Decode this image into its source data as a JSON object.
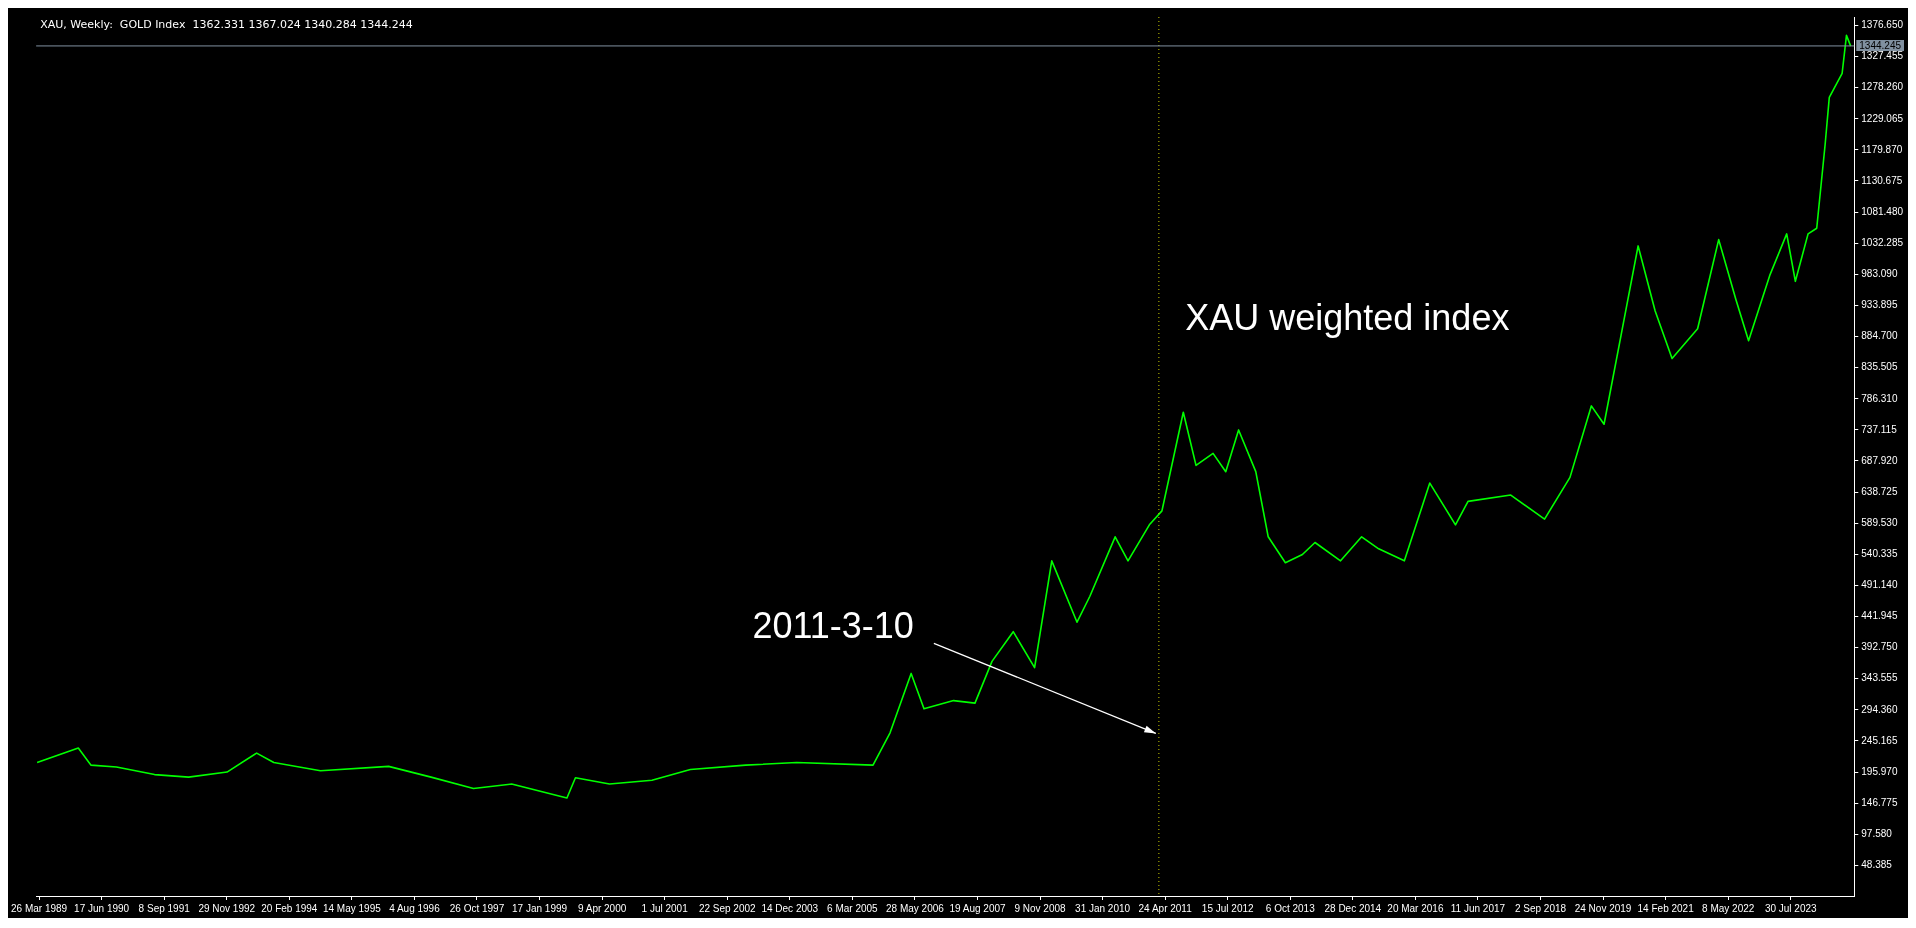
{
  "chart_data": {
    "type": "line",
    "title": "XAU, Weekly:  GOLD Index  1362.331 1367.024 1340.284 1344.244",
    "x": [
      "1989-03-12",
      "1990-01",
      "1990-04",
      "1990-10",
      "1991-07",
      "1992-03",
      "1992-12",
      "1993-07",
      "1993-11",
      "1994-10",
      "1996-02",
      "1996-12",
      "1997-10",
      "1998-07",
      "1999-08",
      "1999-10",
      "2000-06",
      "2001-04",
      "2002-01",
      "2003-02",
      "2004-02",
      "2005-08",
      "2005-12",
      "2006-05",
      "2006-08",
      "2007-03",
      "2007-08",
      "2007-12",
      "2008-05",
      "2008-10",
      "2009-02",
      "2009-08",
      "2009-11",
      "2010-05",
      "2010-08",
      "2011-01",
      "2011-04",
      "2011-09",
      "2011-12",
      "2012-04",
      "2012-07",
      "2012-10",
      "2013-02",
      "2013-05",
      "2013-09",
      "2014-01",
      "2014-04",
      "2014-10",
      "2015-03",
      "2015-07",
      "2016-01",
      "2016-07",
      "2017-01",
      "2017-04",
      "2018-02",
      "2018-10",
      "2019-04",
      "2019-09",
      "2019-12",
      "2020-04",
      "2020-08",
      "2020-12",
      "2021-04",
      "2021-10",
      "2022-03",
      "2022-07",
      "2022-10",
      "2023-03",
      "2023-07",
      "2023-09",
      "2023-12",
      "2024-02",
      "2024-04",
      "2024-05",
      "2024-08",
      "2024-09",
      "2024-10"
    ],
    "series": [
      {
        "color": "#00ff00",
        "values": [
          211,
          234,
          207,
          204,
          192,
          188,
          196,
          226,
          211,
          198,
          205,
          188,
          170,
          177,
          155,
          187,
          177,
          183,
          200,
          207,
          211,
          207,
          258,
          352,
          296,
          309,
          305,
          371,
          418,
          361,
          530,
          433,
          474,
          568,
          530,
          587,
          609,
          765,
          681,
          700,
          671,
          737,
          671,
          568,
          527,
          540,
          559,
          530,
          568,
          549,
          530,
          653,
          587,
          624,
          634,
          596,
          662,
          775,
          746,
          887,
          1028,
          925,
          850,
          897,
          1038,
          944,
          878,
          981,
          1047,
          972,
          1047,
          1056,
          1188,
          1263,
          1301,
          1361,
          1344
        ]
      }
    ],
    "xlim": [
      "1989-03-05",
      "2024-10-27"
    ],
    "xticks": [
      {
        "value": "1989-03-26",
        "label": "26 Mar 1989"
      },
      {
        "value": "1990-06-17",
        "label": "17 Jun 1990"
      },
      {
        "value": "1991-09-08",
        "label": "8 Sep 1991"
      },
      {
        "value": "1992-11-29",
        "label": "29 Nov 1992"
      },
      {
        "value": "1994-02-20",
        "label": "20 Feb 1994"
      },
      {
        "value": "1995-05-14",
        "label": "14 May 1995"
      },
      {
        "value": "1996-08-04",
        "label": "4 Aug 1996"
      },
      {
        "value": "1997-10-26",
        "label": "26 Oct 1997"
      },
      {
        "value": "1999-01-17",
        "label": "17 Jan 1999"
      },
      {
        "value": "2000-04-09",
        "label": "9 Apr 2000"
      },
      {
        "value": "2001-07-01",
        "label": "1 Jul 2001"
      },
      {
        "value": "2002-09-22",
        "label": "22 Sep 2002"
      },
      {
        "value": "2003-12-14",
        "label": "14 Dec 2003"
      },
      {
        "value": "2005-03-06",
        "label": "6 Mar 2005"
      },
      {
        "value": "2006-05-28",
        "label": "28 May 2006"
      },
      {
        "value": "2007-08-19",
        "label": "19 Aug 2007"
      },
      {
        "value": "2008-11-09",
        "label": "9 Nov 2008"
      },
      {
        "value": "2010-01-31",
        "label": "31 Jan 2010"
      },
      {
        "value": "2011-04-24",
        "label": "24 Apr 2011"
      },
      {
        "value": "2012-07-15",
        "label": "15 Jul 2012"
      },
      {
        "value": "2013-10-06",
        "label": "6 Oct 2013"
      },
      {
        "value": "2014-12-28",
        "label": "28 Dec 2014"
      },
      {
        "value": "2016-03-20",
        "label": "20 Mar 2016"
      },
      {
        "value": "2017-06-11",
        "label": "11 Jun 2017"
      },
      {
        "value": "2018-09-02",
        "label": "2 Sep 2018"
      },
      {
        "value": "2019-11-24",
        "label": "24 Nov 2019"
      },
      {
        "value": "2021-02-14",
        "label": "14 Feb 2021"
      },
      {
        "value": "2022-05-08",
        "label": "8 May 2022"
      },
      {
        "value": "2023-07-30",
        "label": "30 Jul 2023"
      }
    ],
    "ylim": [
      0,
      1390
    ],
    "yticks": [
      48.385,
      {
        "value": 97.58,
        "label": "97.580"
      },
      146.775,
      {
        "value": 195.97,
        "label": "195.970"
      },
      245.165,
      {
        "value": 294.36,
        "label": "294.360"
      },
      343.555,
      {
        "value": 392.75,
        "label": "392.750"
      },
      441.945,
      {
        "value": 491.14,
        "label": "491.140"
      },
      540.335,
      {
        "value": 589.53,
        "label": "589.530"
      },
      638.725,
      {
        "value": 687.92,
        "label": "687.920"
      },
      737.115,
      {
        "value": 786.31,
        "label": "786.310"
      },
      835.505,
      {
        "value": 884.7,
        "label": "884.700"
      },
      933.895,
      {
        "value": 983.09,
        "label": "983.090"
      },
      1032.285,
      {
        "value": 1081.48,
        "label": "1081.480"
      },
      1130.675,
      {
        "value": 1179.87,
        "label": "1179.870"
      },
      1229.065,
      {
        "value": 1278.26,
        "label": "1278.260"
      },
      1327.455,
      {
        "value": 1376.65,
        "label": "1376.650"
      }
    ],
    "ref_lines": [
      {
        "axis": "x",
        "value": "2011-03-10",
        "label": "2011-3-10",
        "color": "#c8c800",
        "line_style": "dotted"
      },
      {
        "axis": "y",
        "value": 1344.245,
        "label": "1344.245",
        "color": "#8090a0"
      }
    ],
    "annotations": [
      "XAU weighted index"
    ],
    "grid": false,
    "legend": false,
    "marker": "none",
    "line_style": "solid"
  }
}
